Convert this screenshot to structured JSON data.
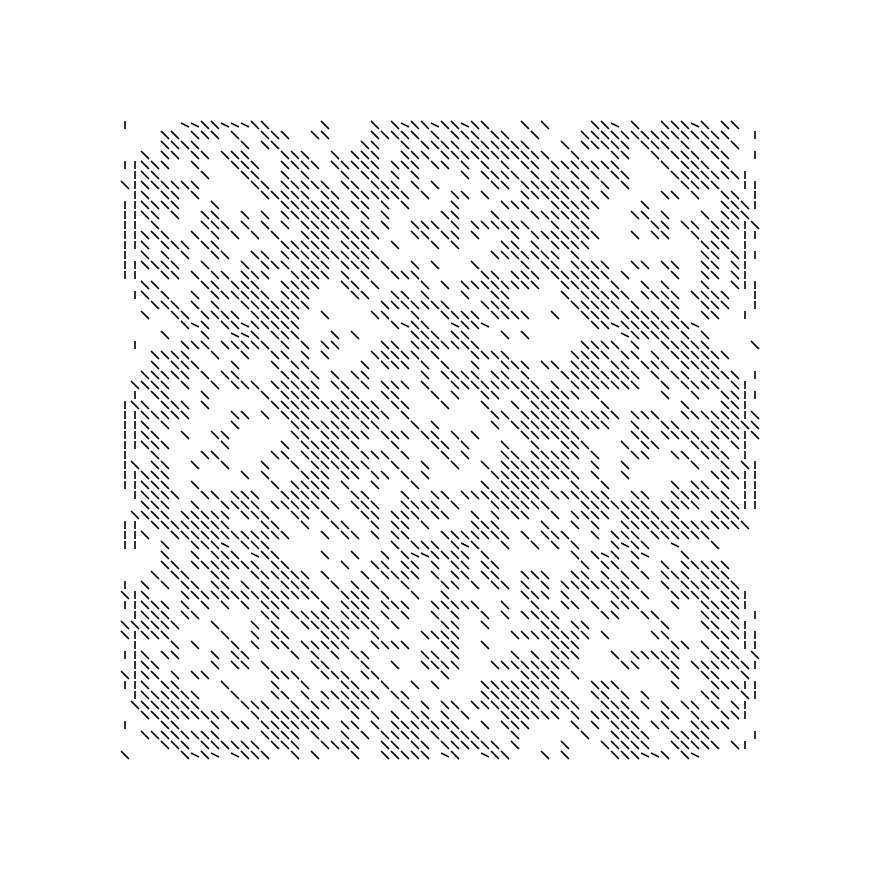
{
  "artwork": {
    "kind": "generative line pattern",
    "grid": {
      "rows": 3,
      "cols": 3
    },
    "motif": "circle",
    "stroke_directions": [
      "diagonal",
      "vertical"
    ],
    "colors": {
      "background": "#ffffff",
      "stroke": "#000000"
    }
  }
}
